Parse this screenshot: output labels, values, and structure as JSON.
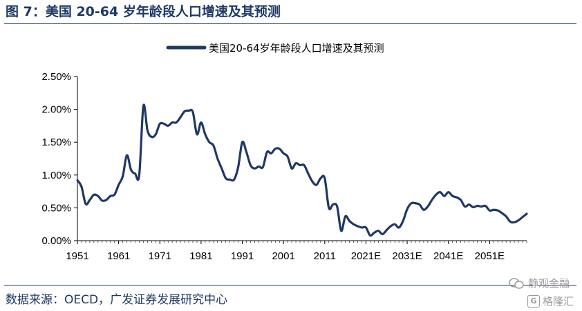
{
  "figure": {
    "title": "图 7：美国 20-64 岁年龄段人口增速及其预测",
    "source": "数据来源：OECD，广发证券发展研究中心"
  },
  "watermark": {
    "name": "静观金融",
    "brand": "格隆汇",
    "brand_logo_letter": "G"
  },
  "chart_data": {
    "type": "line",
    "title": "",
    "xlabel": "",
    "ylabel": "",
    "legend_position": "top-center",
    "grid": false,
    "ylim": [
      0,
      0.025
    ],
    "yticks": [
      "0.00%",
      "0.50%",
      "1.00%",
      "1.50%",
      "2.00%",
      "2.50%"
    ],
    "xticks": [
      "1951",
      "1961",
      "1971",
      "1981",
      "1991",
      "2001",
      "2011",
      "2021E",
      "2031E",
      "2041E",
      "2051E"
    ],
    "x_range": [
      1951,
      2060
    ],
    "series": [
      {
        "name": "美国20-64岁年龄段人口增速及其预测",
        "color": "#1f3864",
        "x": [
          1951,
          1952,
          1953,
          1954,
          1955,
          1956,
          1957,
          1958,
          1959,
          1960,
          1961,
          1962,
          1963,
          1964,
          1965,
          1966,
          1967,
          1968,
          1969,
          1970,
          1971,
          1972,
          1973,
          1974,
          1975,
          1976,
          1977,
          1978,
          1979,
          1980,
          1981,
          1982,
          1983,
          1984,
          1985,
          1986,
          1987,
          1988,
          1989,
          1990,
          1991,
          1992,
          1993,
          1994,
          1995,
          1996,
          1997,
          1998,
          1999,
          2000,
          2001,
          2002,
          2003,
          2004,
          2005,
          2006,
          2007,
          2008,
          2009,
          2010,
          2011,
          2012,
          2013,
          2014,
          2015,
          2016,
          2017,
          2018,
          2019,
          2020,
          2021,
          2022,
          2023,
          2024,
          2025,
          2026,
          2027,
          2028,
          2029,
          2030,
          2031,
          2032,
          2033,
          2034,
          2035,
          2036,
          2037,
          2038,
          2039,
          2040,
          2041,
          2042,
          2043,
          2044,
          2045,
          2046,
          2047,
          2048,
          2049,
          2050,
          2051,
          2052,
          2053,
          2054,
          2055,
          2056,
          2057,
          2058,
          2059,
          2060
        ],
        "values": [
          0.0092,
          0.0082,
          0.0056,
          0.0062,
          0.007,
          0.0068,
          0.0061,
          0.0062,
          0.0068,
          0.007,
          0.0085,
          0.0098,
          0.013,
          0.0108,
          0.0102,
          0.01,
          0.0205,
          0.0168,
          0.0158,
          0.0162,
          0.0178,
          0.0178,
          0.0175,
          0.018,
          0.018,
          0.0188,
          0.0197,
          0.0198,
          0.0196,
          0.0162,
          0.018,
          0.0162,
          0.015,
          0.0145,
          0.0125,
          0.011,
          0.0095,
          0.0093,
          0.0093,
          0.0112,
          0.015,
          0.0135,
          0.0115,
          0.011,
          0.0113,
          0.0112,
          0.0135,
          0.0133,
          0.014,
          0.014,
          0.0133,
          0.0128,
          0.011,
          0.0118,
          0.0115,
          0.0115,
          0.0102,
          0.009,
          0.0085,
          0.0095,
          0.0095,
          0.005,
          0.0055,
          0.0052,
          0.0015,
          0.0037,
          0.003,
          0.0025,
          0.0022,
          0.002,
          0.002,
          0.0008,
          0.0012,
          0.0015,
          0.001,
          0.0016,
          0.0022,
          0.0025,
          0.002,
          0.003,
          0.0048,
          0.0057,
          0.0057,
          0.0055,
          0.0047,
          0.0052,
          0.0062,
          0.007,
          0.0074,
          0.0068,
          0.0074,
          0.0068,
          0.0066,
          0.0062,
          0.0052,
          0.0055,
          0.0051,
          0.0053,
          0.0052,
          0.0053,
          0.0046,
          0.0047,
          0.0046,
          0.0042,
          0.0037,
          0.0029,
          0.0028,
          0.0031,
          0.0036,
          0.0041
        ]
      }
    ]
  }
}
